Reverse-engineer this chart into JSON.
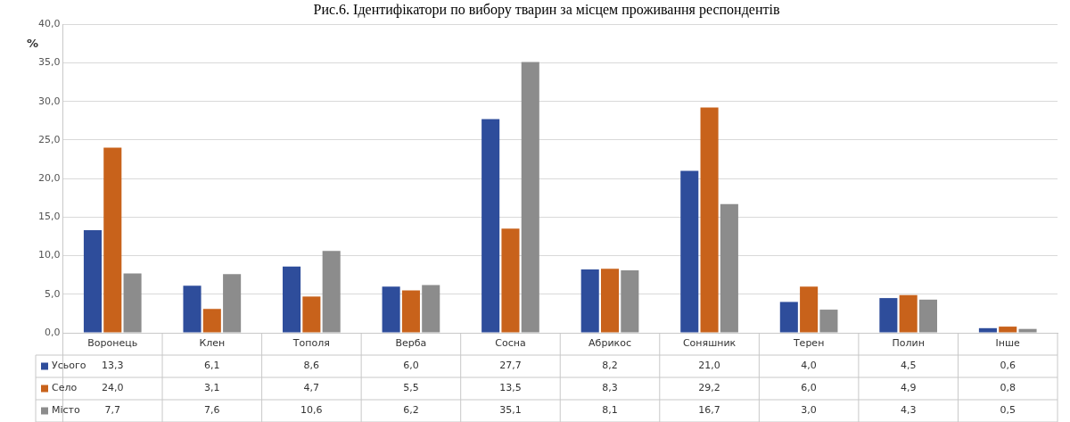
{
  "chart_data": {
    "type": "bar",
    "title": "Рис.6. Ідентифікатори по вибору тварин за місцем проживання респондентів",
    "ylabel": "%",
    "categories": [
      "Воронець",
      "Клен",
      "Тополя",
      "Верба",
      "Сосна",
      "Абрикос",
      "Соняшник",
      "Терен",
      "Полин",
      "Інше"
    ],
    "series": [
      {
        "name": "Усього",
        "color": "#2e4d9b",
        "values": [
          13.3,
          6.1,
          8.6,
          6.0,
          27.7,
          8.2,
          21.0,
          4.0,
          4.5,
          0.6
        ],
        "value_labels": [
          "13,3",
          "6,1",
          "8,6",
          "6,0",
          "27,7",
          "8,2",
          "21,0",
          "4,0",
          "4,5",
          "0,6"
        ]
      },
      {
        "name": "Село",
        "color": "#c8621b",
        "values": [
          24.0,
          3.1,
          4.7,
          5.5,
          13.5,
          8.3,
          29.2,
          6.0,
          4.9,
          0.8
        ],
        "value_labels": [
          "24,0",
          "3,1",
          "4,7",
          "5,5",
          "13,5",
          "8,3",
          "29,2",
          "6,0",
          "4,9",
          "0,8"
        ]
      },
      {
        "name": "Місто",
        "color": "#8c8c8c",
        "values": [
          7.7,
          7.6,
          10.6,
          6.2,
          35.1,
          8.1,
          16.7,
          3.0,
          4.3,
          0.5
        ],
        "value_labels": [
          "7,7",
          "7,6",
          "10,6",
          "6,2",
          "35,1",
          "8,1",
          "16,7",
          "3,0",
          "4,3",
          "0,5"
        ]
      }
    ],
    "ylim": [
      0,
      40
    ],
    "yticks": [
      {
        "value": 0,
        "label": "0,0"
      },
      {
        "value": 5,
        "label": "5,0"
      },
      {
        "value": 10,
        "label": "10,0"
      },
      {
        "value": 15,
        "label": "15,0"
      },
      {
        "value": 20,
        "label": "20,0"
      },
      {
        "value": 25,
        "label": "25,0"
      },
      {
        "value": 30,
        "label": "30,0"
      },
      {
        "value": 35,
        "label": "35,0"
      },
      {
        "value": 40,
        "label": "40,0"
      }
    ],
    "grid": "y",
    "legend": "bottom"
  }
}
